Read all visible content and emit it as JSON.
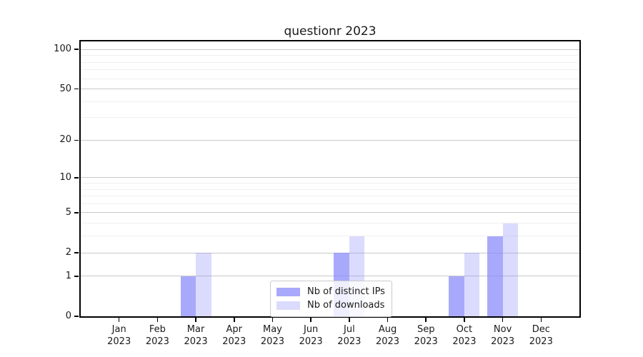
{
  "chart_data": {
    "type": "bar",
    "title": "questionr 2023",
    "categories": [
      "Jan 2023",
      "Feb 2023",
      "Mar 2023",
      "Apr 2023",
      "May 2023",
      "Jun 2023",
      "Jul 2023",
      "Aug 2023",
      "Sep 2023",
      "Oct 2023",
      "Nov 2023",
      "Dec 2023"
    ],
    "series": [
      {
        "name": "Nb of distinct IPs",
        "color": "#8888fa",
        "opacity": 0.72,
        "values": [
          0,
          0,
          1,
          0,
          0,
          0,
          2,
          0,
          0,
          1,
          3,
          0
        ]
      },
      {
        "name": "Nb of downloads",
        "color": "#8888fa",
        "opacity": 0.3,
        "values": [
          0,
          0,
          2,
          0,
          0,
          0,
          3,
          0,
          0,
          2,
          4,
          0
        ]
      }
    ],
    "y_scale": "log10(value+1)",
    "y_major_ticks": [
      0,
      1,
      2,
      5,
      10,
      20,
      50,
      100
    ],
    "y_minor_ticks": [
      3,
      4,
      6,
      7,
      8,
      9,
      30,
      40,
      60,
      70,
      80,
      90
    ],
    "ylim": [
      0,
      115
    ],
    "grid": "on",
    "legend_position": "lower center"
  },
  "colors": {
    "background": "#ffffff",
    "bar_base": "#8888fa",
    "grid_major": "#c9c9c9",
    "grid_minor": "#efefef",
    "spine": "#000000",
    "text": "#1a1a1a",
    "legend_border": "#cccccc"
  }
}
